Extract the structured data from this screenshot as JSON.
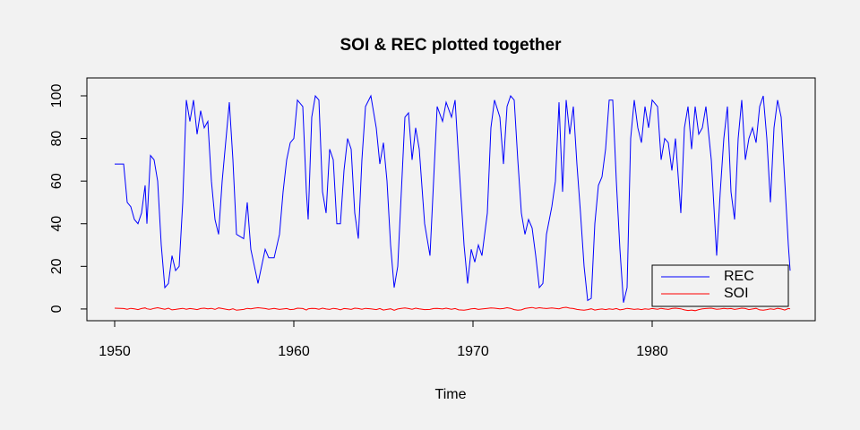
{
  "chart_data": {
    "type": "line",
    "title": "SOI & REC plotted together",
    "xlabel": "Time",
    "x": [
      1950.0,
      1950.5,
      1950.7,
      1950.9,
      1951.1,
      1951.3,
      1951.5,
      1951.7,
      1951.8,
      1952.0,
      1952.2,
      1952.4,
      1952.6,
      1952.8,
      1953.0,
      1953.2,
      1953.4,
      1953.6,
      1953.8,
      1954.0,
      1954.2,
      1954.4,
      1954.6,
      1954.8,
      1955.0,
      1955.2,
      1955.4,
      1955.6,
      1955.8,
      1956.0,
      1956.4,
      1956.6,
      1956.8,
      1957.2,
      1957.4,
      1957.6,
      1957.8,
      1958.0,
      1958.4,
      1958.6,
      1958.9,
      1959.2,
      1959.4,
      1959.6,
      1959.8,
      1960.0,
      1960.2,
      1960.5,
      1960.7,
      1960.8,
      1961.0,
      1961.2,
      1961.4,
      1961.6,
      1961.8,
      1962.0,
      1962.2,
      1962.4,
      1962.6,
      1962.8,
      1963.0,
      1963.2,
      1963.4,
      1963.6,
      1963.8,
      1964.0,
      1964.3,
      1964.6,
      1964.8,
      1965.0,
      1965.2,
      1965.4,
      1965.6,
      1965.8,
      1966.0,
      1966.2,
      1966.4,
      1966.6,
      1966.8,
      1967.0,
      1967.3,
      1967.6,
      1967.8,
      1968.0,
      1968.3,
      1968.5,
      1968.8,
      1969.0,
      1969.2,
      1969.5,
      1969.7,
      1969.9,
      1970.1,
      1970.3,
      1970.5,
      1970.8,
      1971.0,
      1971.2,
      1971.5,
      1971.7,
      1971.9,
      1972.1,
      1972.3,
      1972.5,
      1972.7,
      1972.9,
      1973.1,
      1973.3,
      1973.5,
      1973.7,
      1973.9,
      1974.1,
      1974.4,
      1974.6,
      1974.8,
      1975.0,
      1975.2,
      1975.4,
      1975.6,
      1975.8,
      1976.0,
      1976.2,
      1976.4,
      1976.6,
      1976.8,
      1977.0,
      1977.2,
      1977.4,
      1977.6,
      1977.8,
      1978.0,
      1978.2,
      1978.4,
      1978.6,
      1978.8,
      1979.0,
      1979.2,
      1979.4,
      1979.6,
      1979.8,
      1980.0,
      1980.3,
      1980.5,
      1980.7,
      1980.9,
      1981.1,
      1981.3,
      1981.6,
      1981.8,
      1982.0,
      1982.2,
      1982.4,
      1982.6,
      1982.8,
      1983.0,
      1983.3,
      1983.6,
      1983.8,
      1984.0,
      1984.2,
      1984.4,
      1984.6,
      1984.8,
      1985.0,
      1985.2,
      1985.4,
      1985.6,
      1985.8,
      1986.0,
      1986.2,
      1986.4,
      1986.6,
      1986.8,
      1987.0,
      1987.2,
      1987.4,
      1987.6,
      1987.7
    ],
    "series": [
      {
        "name": "REC",
        "color": "#0000ff",
        "values": [
          68,
          68,
          50,
          48,
          42,
          40,
          45,
          58,
          40,
          72,
          70,
          60,
          30,
          10,
          12,
          25,
          18,
          20,
          50,
          98,
          88,
          98,
          82,
          93,
          85,
          88,
          60,
          42,
          35,
          60,
          97,
          70,
          35,
          33,
          50,
          28,
          20,
          12,
          28,
          24,
          24,
          35,
          55,
          70,
          78,
          80,
          98,
          95,
          55,
          42,
          90,
          100,
          98,
          55,
          45,
          75,
          70,
          40,
          40,
          65,
          80,
          75,
          45,
          33,
          70,
          95,
          100,
          85,
          68,
          78,
          60,
          30,
          10,
          20,
          55,
          90,
          92,
          70,
          85,
          75,
          40,
          25,
          60,
          95,
          88,
          97,
          90,
          98,
          70,
          30,
          12,
          28,
          22,
          30,
          25,
          45,
          85,
          98,
          90,
          68,
          95,
          100,
          98,
          70,
          45,
          35,
          42,
          38,
          25,
          10,
          12,
          35,
          48,
          60,
          97,
          55,
          98,
          82,
          95,
          68,
          45,
          20,
          4,
          5,
          40,
          58,
          62,
          75,
          98,
          98,
          60,
          28,
          3,
          10,
          80,
          98,
          85,
          78,
          95,
          85,
          98,
          95,
          70,
          80,
          78,
          65,
          80,
          45,
          85,
          95,
          75,
          95,
          82,
          85,
          95,
          70,
          25,
          55,
          80,
          95,
          55,
          42,
          80,
          98,
          70,
          80,
          85,
          78,
          95,
          100,
          80,
          50,
          85,
          98,
          90,
          60,
          30,
          18
        ]
      },
      {
        "name": "SOI",
        "color": "#ff0000",
        "values": [
          0.4,
          0.2,
          -0.1,
          0.3,
          0.1,
          -0.3,
          0.2,
          0.5,
          0.1,
          -0.2,
          0.3,
          0.6,
          0.2,
          -0.1,
          0.4,
          -0.4,
          -0.2,
          0.1,
          0.3,
          -0.1,
          0.2,
          0.0,
          -0.3,
          0.2,
          0.4,
          0.1,
          0.3,
          -0.2,
          0.5,
          0.2,
          -0.4,
          0.1,
          -0.6,
          -0.2,
          0.3,
          0.1,
          0.4,
          0.6,
          0.2,
          -0.1,
          0.3,
          -0.2,
          0.0,
          0.2,
          -0.3,
          -0.1,
          0.4,
          0.2,
          -0.5,
          0.1,
          0.3,
          0.2,
          -0.1,
          0.4,
          0.0,
          -0.2,
          0.3,
          0.1,
          -0.4,
          0.2,
          0.1,
          -0.2,
          0.4,
          0.2,
          -0.1,
          0.3,
          0.1,
          -0.3,
          0.2,
          -0.5,
          -0.2,
          0.1,
          -0.6,
          0.0,
          0.3,
          0.5,
          0.2,
          -0.1,
          0.4,
          0.1,
          -0.3,
          -0.2,
          0.2,
          0.3,
          0.0,
          0.4,
          -0.1,
          0.2,
          -0.4,
          -0.6,
          -0.3,
          0.1,
          0.2,
          -0.2,
          0.0,
          0.3,
          0.5,
          0.4,
          0.1,
          0.2,
          0.6,
          0.3,
          -0.3,
          -0.6,
          -0.4,
          0.2,
          0.5,
          0.7,
          0.3,
          0.6,
          0.4,
          0.2,
          0.5,
          0.3,
          0.1,
          0.6,
          0.8,
          0.4,
          0.2,
          -0.2,
          -0.4,
          -0.6,
          -0.3,
          0.1,
          -0.5,
          -0.2,
          0.0,
          -0.3,
          0.1,
          -0.2,
          0.2,
          -0.4,
          -0.1,
          0.3,
          0.1,
          -0.2,
          0.0,
          -0.3,
          0.1,
          -0.1,
          0.2,
          -0.1,
          0.3,
          0.0,
          -0.2,
          0.2,
          0.4,
          0.1,
          -0.4,
          -0.7,
          -0.5,
          -0.8,
          -0.3,
          0.1,
          0.2,
          0.4,
          -0.1,
          0.0,
          0.3,
          0.1,
          0.2,
          -0.2,
          0.1,
          0.4,
          0.2,
          -0.3,
          0.0,
          0.3,
          -0.4,
          -0.6,
          -0.3,
          0.1,
          -0.2,
          0.3,
          0.0,
          -0.5,
          0.2,
          0.1
        ]
      }
    ],
    "xlim": [
      1948.45,
      1989.1
    ],
    "ylim": [
      -5.5,
      108.4
    ],
    "xticks": [
      1950,
      1960,
      1970,
      1980
    ],
    "yticks": [
      0,
      20,
      40,
      60,
      80,
      100
    ],
    "legend": "bottomright"
  }
}
